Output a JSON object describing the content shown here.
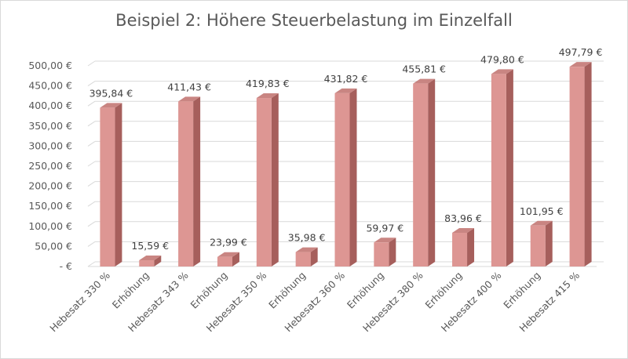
{
  "chart_data": {
    "type": "bar",
    "title": "Beispiel 2: Höhere Steuerbelastung im Einzelfall",
    "categories": [
      "Hebesatz 330 %",
      "Erhöhung",
      "Hebesatz 343 %",
      "Erhöhung",
      "Hebesatz 350 %",
      "Erhöhung",
      "Hebesatz 360 %",
      "Erhöhung",
      "Hebesatz 380 %",
      "Erhöhung",
      "Hebesatz 400 %",
      "Erhöhung",
      "Hebesatz 415 %"
    ],
    "values": [
      395.84,
      15.59,
      411.43,
      23.99,
      419.83,
      35.98,
      431.82,
      59.97,
      455.81,
      83.96,
      479.8,
      101.95,
      497.79
    ],
    "data_labels": [
      "395,84 €",
      "15,59 €",
      "411,43 €",
      "23,99 €",
      "419,83 €",
      "35,98 €",
      "431,82 €",
      "59,97 €",
      "455,81 €",
      "83,96 €",
      "479,80 €",
      "101,95 €",
      "497,79 €"
    ],
    "ylim": [
      0,
      500
    ],
    "y_ticks": [
      0,
      50,
      100,
      150,
      200,
      250,
      300,
      350,
      400,
      450,
      500
    ],
    "y_tick_labels": [
      "-  €",
      "50,00 €",
      "100,00 €",
      "150,00 €",
      "200,00 €",
      "250,00 €",
      "300,00 €",
      "350,00 €",
      "400,00 €",
      "450,00 €",
      "500,00 €"
    ],
    "xlabel": "",
    "ylabel": "",
    "grid": true,
    "legend": "none",
    "style": "3d-column",
    "colors": {
      "bar_front": "#dd9693",
      "bar_side": "#a65f5c",
      "bar_top": "#c98582",
      "gridline": "#d9d9d9",
      "text": "#595959"
    }
  }
}
